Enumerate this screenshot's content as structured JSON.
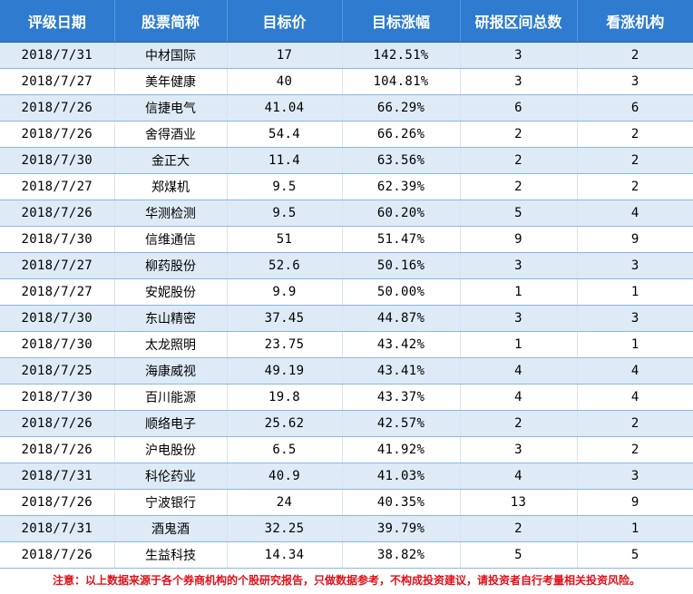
{
  "table": {
    "headers": [
      "评级日期",
      "股票简称",
      "目标价",
      "目标涨幅",
      "研报区间总数",
      "看涨机构"
    ],
    "rows": [
      [
        "2018/7/31",
        "中材国际",
        "17",
        "142.51%",
        "3",
        "2"
      ],
      [
        "2018/7/27",
        "美年健康",
        "40",
        "104.81%",
        "3",
        "3"
      ],
      [
        "2018/7/26",
        "信捷电气",
        "41.04",
        "66.29%",
        "6",
        "6"
      ],
      [
        "2018/7/26",
        "舍得酒业",
        "54.4",
        "66.26%",
        "2",
        "2"
      ],
      [
        "2018/7/30",
        "金正大",
        "11.4",
        "63.56%",
        "2",
        "2"
      ],
      [
        "2018/7/27",
        "郑煤机",
        "9.5",
        "62.39%",
        "2",
        "2"
      ],
      [
        "2018/7/26",
        "华测检测",
        "9.5",
        "60.20%",
        "5",
        "4"
      ],
      [
        "2018/7/30",
        "信维通信",
        "51",
        "51.47%",
        "9",
        "9"
      ],
      [
        "2018/7/27",
        "柳药股份",
        "52.6",
        "50.16%",
        "3",
        "3"
      ],
      [
        "2018/7/27",
        "安妮股份",
        "9.9",
        "50.00%",
        "1",
        "1"
      ],
      [
        "2018/7/30",
        "东山精密",
        "37.45",
        "44.87%",
        "3",
        "3"
      ],
      [
        "2018/7/30",
        "太龙照明",
        "23.75",
        "43.42%",
        "1",
        "1"
      ],
      [
        "2018/7/25",
        "海康威视",
        "49.19",
        "43.41%",
        "4",
        "4"
      ],
      [
        "2018/7/30",
        "百川能源",
        "19.8",
        "43.37%",
        "4",
        "4"
      ],
      [
        "2018/7/26",
        "顺络电子",
        "25.62",
        "42.57%",
        "2",
        "2"
      ],
      [
        "2018/7/26",
        "沪电股份",
        "6.5",
        "41.92%",
        "3",
        "2"
      ],
      [
        "2018/7/31",
        "科伦药业",
        "40.9",
        "41.03%",
        "4",
        "3"
      ],
      [
        "2018/7/26",
        "宁波银行",
        "24",
        "40.35%",
        "13",
        "9"
      ],
      [
        "2018/7/31",
        "酒鬼酒",
        "32.25",
        "39.79%",
        "2",
        "1"
      ],
      [
        "2018/7/26",
        "生益科技",
        "14.34",
        "38.82%",
        "5",
        "5"
      ]
    ]
  },
  "footnote": "注意：以上数据来源于各个券商机构的个股研究报告，只做数据参考，不构成投资建议，请投资者自行考量相关投资风险。",
  "colors": {
    "header_bg": "#2e7bd0",
    "header_text": "#ffffff",
    "row_alt_bg": "#deeaf6",
    "row_bg": "#ffffff",
    "footnote_text": "#e0101a"
  }
}
